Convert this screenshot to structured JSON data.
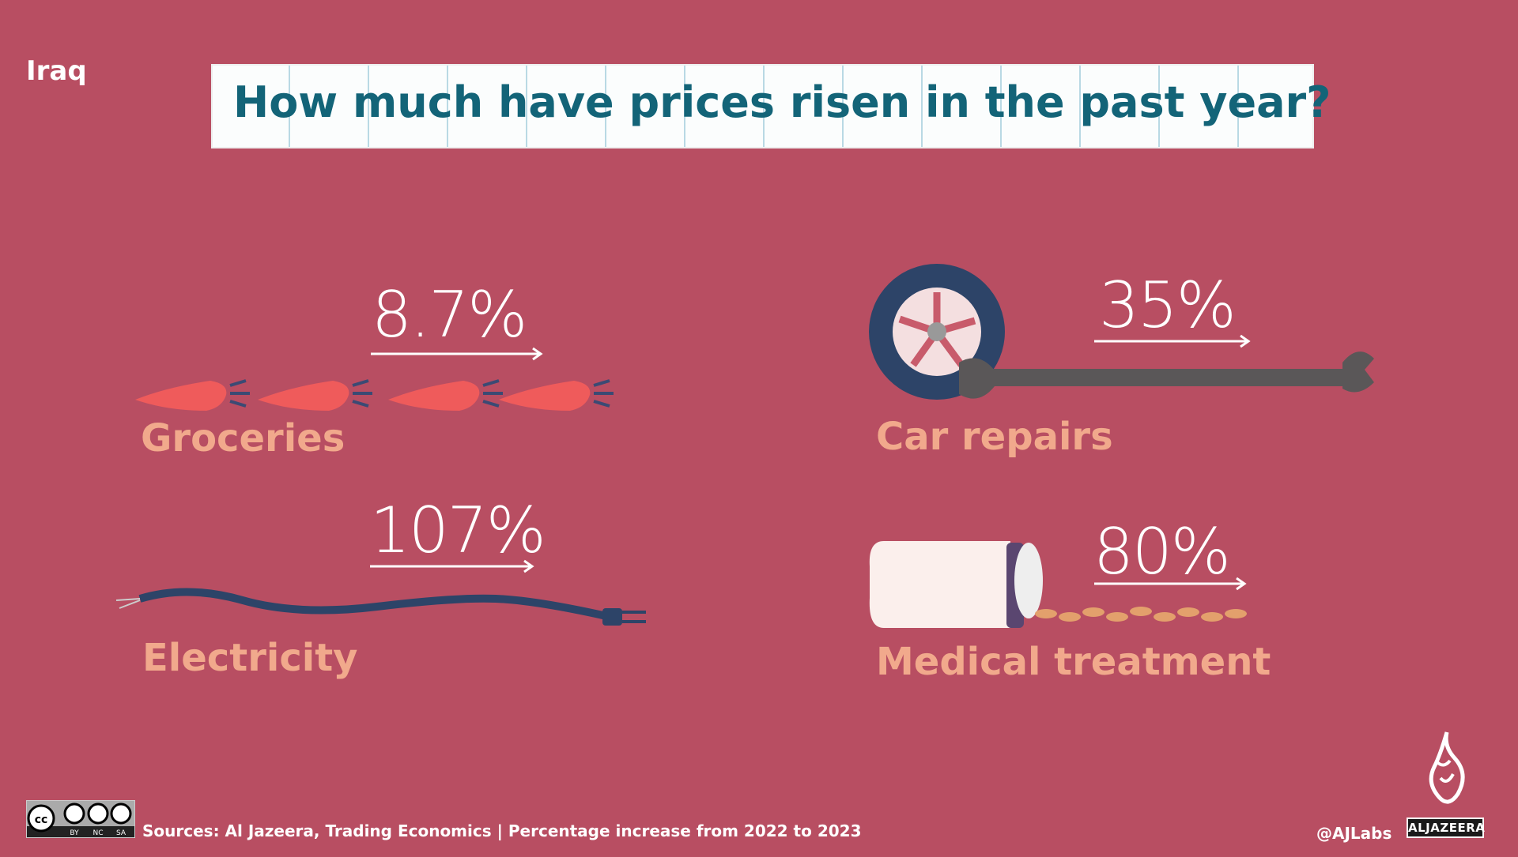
{
  "header": {
    "country": "Iraq",
    "title": "How much have prices risen in the past year?"
  },
  "items": [
    {
      "label": "Groceries",
      "value": "8.7%",
      "icon": "carrot-icon"
    },
    {
      "label": "Car repairs",
      "value": "35%",
      "icon": "wheel-wrench-icon"
    },
    {
      "label": "Electricity",
      "value": "107%",
      "icon": "power-cable-icon"
    },
    {
      "label": "Medical treatment",
      "value": "80%",
      "icon": "pill-bottle-icon"
    }
  ],
  "footer": {
    "license": "CC BY NC SA",
    "license_parts": [
      "BY",
      "NC",
      "SA"
    ],
    "sources": "Sources: Al Jazeera, Trading Economics | Percentage increase from 2022 to 2023",
    "handle": "@AJLabs",
    "brand": "ALJAZEERA"
  },
  "colors": {
    "background": "#b84e62",
    "title_text": "#136478",
    "label_text": "#f1a98c"
  }
}
